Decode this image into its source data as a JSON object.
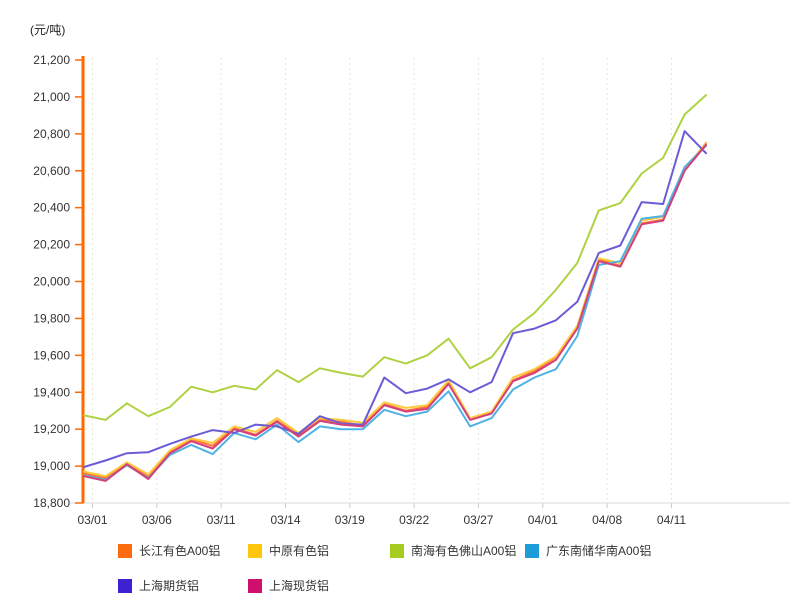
{
  "unit_label": "(元/吨)",
  "chart_data": {
    "type": "line",
    "title": "",
    "ylabel": "(元/吨)",
    "xlabel": "",
    "ylim": [
      18800,
      21200
    ],
    "ytick_step": 200,
    "yticks": [
      "18,800",
      "19,000",
      "19,200",
      "19,400",
      "19,600",
      "19,800",
      "20,000",
      "20,200",
      "20,400",
      "20,600",
      "20,800",
      "21,000",
      "21,200"
    ],
    "x_labels": [
      "03/01",
      "03/06",
      "03/11",
      "03/14",
      "03/19",
      "03/22",
      "03/27",
      "04/01",
      "04/08",
      "04/11"
    ],
    "x_label_indices": [
      0,
      3,
      6,
      9,
      12,
      15,
      18,
      21,
      24,
      27
    ],
    "n_points": 30,
    "grid": "vertical-dotted",
    "legend_position": "bottom",
    "axis_colors": {
      "y_axis": "#FF6A00",
      "x_axis": "#D9D9D9",
      "grid": "#E6E6E6",
      "tick_label": "#333333"
    },
    "series": [
      {
        "name": "长江有色A00铝",
        "color": "#FB6C0F",
        "line_color": "#FF7434",
        "values": [
          18960,
          18935,
          19015,
          18945,
          19080,
          19145,
          19110,
          19205,
          19170,
          19245,
          19170,
          19250,
          19240,
          19220,
          19335,
          19300,
          19320,
          19450,
          19255,
          19290,
          19465,
          19515,
          19590,
          19755,
          20120,
          20085,
          20315,
          20335,
          20605,
          20750
        ]
      },
      {
        "name": "中原有色铝",
        "color": "#FFC60B",
        "line_color": "#FFC93E",
        "values": [
          18970,
          18945,
          19020,
          18955,
          19085,
          19150,
          19125,
          19215,
          19185,
          19260,
          19180,
          19260,
          19250,
          19235,
          19345,
          19315,
          19330,
          19465,
          19260,
          19295,
          19480,
          19525,
          19595,
          19760,
          20125,
          20100,
          20330,
          20350,
          20615,
          20745
        ]
      },
      {
        "name": "南海有色佛山A00铝",
        "color": "#A5CC1E",
        "line_color": "#AFD243",
        "values": [
          19275,
          19250,
          19340,
          19270,
          19320,
          19430,
          19400,
          19435,
          19415,
          19520,
          19455,
          19530,
          19505,
          19485,
          19590,
          19555,
          19600,
          19690,
          19530,
          19590,
          19740,
          19830,
          19955,
          20100,
          20385,
          20425,
          20585,
          20670,
          20905,
          21010
        ]
      },
      {
        "name": "广东南储华南A00铝",
        "color": "#1D9CD9",
        "line_color": "#4FB2E2",
        "values": [
          18950,
          18925,
          19005,
          18935,
          19060,
          19115,
          19065,
          19180,
          19145,
          19225,
          19130,
          19215,
          19200,
          19200,
          19305,
          19270,
          19295,
          19405,
          19215,
          19260,
          19415,
          19480,
          19525,
          19705,
          20090,
          20110,
          20340,
          20355,
          20620,
          20735
        ]
      },
      {
        "name": "上海期货铝",
        "color": "#3D22D2",
        "line_color": "#6A5CD6",
        "values": [
          18995,
          19030,
          19070,
          19075,
          19120,
          19160,
          19195,
          19180,
          19225,
          19215,
          19175,
          19270,
          19230,
          19225,
          19480,
          19395,
          19420,
          19470,
          19400,
          19455,
          19720,
          19745,
          19790,
          19890,
          20155,
          20195,
          20430,
          20420,
          20815,
          20695
        ]
      },
      {
        "name": "上海现货铝",
        "color": "#CE0F6B",
        "line_color": "#D3417D",
        "values": [
          18945,
          18920,
          19010,
          18930,
          19070,
          19135,
          19095,
          19200,
          19165,
          19240,
          19160,
          19245,
          19225,
          19215,
          19330,
          19295,
          19310,
          19445,
          19250,
          19285,
          19460,
          19505,
          19575,
          19745,
          20110,
          20080,
          20310,
          20330,
          20600,
          20740
        ]
      }
    ]
  },
  "legend": {
    "items": [
      "长江有色A00铝",
      "中原有色铝",
      "南海有色佛山A00铝",
      "广东南储华南A00铝",
      "上海期货铝",
      "上海现货铝"
    ]
  }
}
